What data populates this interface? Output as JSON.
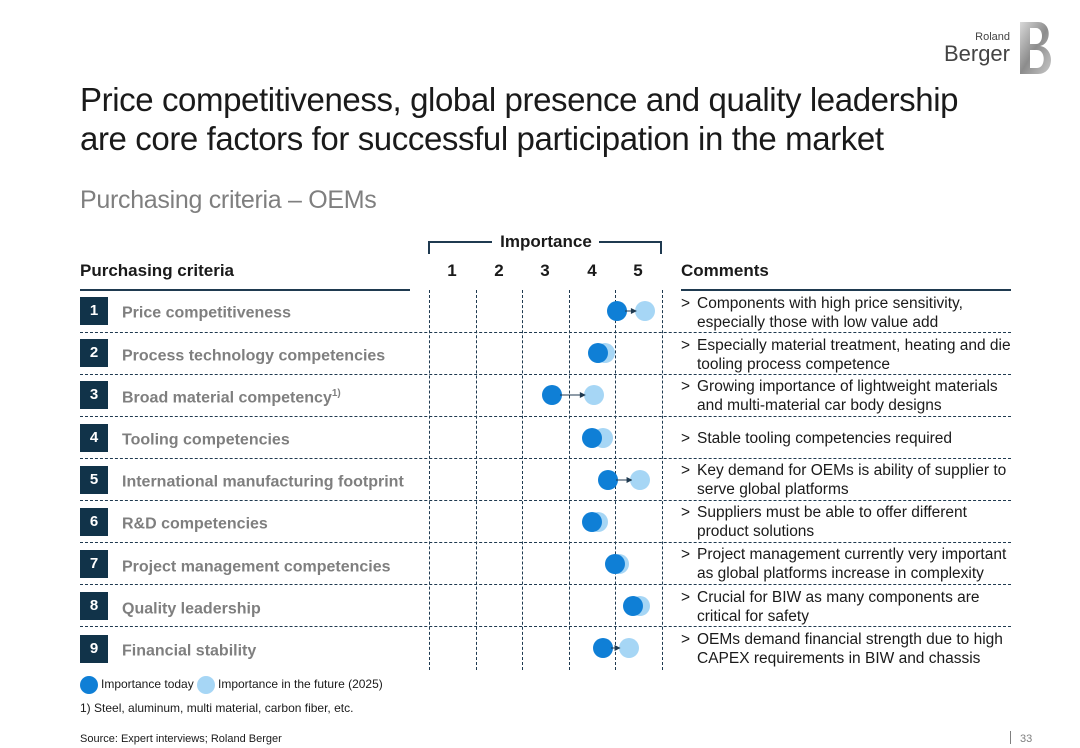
{
  "brand": {
    "line1": "Roland",
    "line2": "Berger",
    "accent": "#113349"
  },
  "title": "Price competitiveness, global presence and quality leadership are core factors for successful participation in the market",
  "subtitle": "Purchasing criteria – OEMs",
  "table": {
    "criteria_header": "Purchasing criteria",
    "importance_header": "Importance",
    "comments_header": "Comments",
    "scale": [
      "1",
      "2",
      "3",
      "4",
      "5"
    ],
    "rows": [
      {
        "num": "1",
        "label": "Price competitiveness",
        "sup": "",
        "today": 4.55,
        "future": 5.15,
        "comment": "Components with high price sensitivity, especially those with low value add"
      },
      {
        "num": "2",
        "label": "Process technology competencies",
        "sup": "",
        "today": 4.15,
        "future": 4.3,
        "comment": "Especially material treatment, heating and die tooling process competence"
      },
      {
        "num": "3",
        "label": "Broad material competency",
        "sup": "1)",
        "today": 3.15,
        "future": 4.05,
        "comment": "Growing importance of lightweight materials and multi-material car body designs"
      },
      {
        "num": "4",
        "label": "Tooling competencies",
        "sup": "",
        "today": 4.0,
        "future": 4.25,
        "comment": "Stable tooling competencies required"
      },
      {
        "num": "5",
        "label": "International manufacturing footprint",
        "sup": "",
        "today": 4.35,
        "future": 5.05,
        "comment": "Key demand for OEMs is ability of supplier to serve global platforms"
      },
      {
        "num": "6",
        "label": "R&D competencies",
        "sup": "",
        "today": 4.0,
        "future": 4.15,
        "comment": "Suppliers must be able to offer different product solutions"
      },
      {
        "num": "7",
        "label": "Project management competencies",
        "sup": "",
        "today": 4.5,
        "future": 4.6,
        "comment": "Project management currently very important as global platforms increase in complexity"
      },
      {
        "num": "8",
        "label": "Quality leadership",
        "sup": "",
        "today": 4.9,
        "future": 5.05,
        "comment": "Crucial for BIW as many components are critical for safety"
      },
      {
        "num": "9",
        "label": "Financial stability",
        "sup": "",
        "today": 4.25,
        "future": 4.8,
        "comment": "OEMs demand financial strength due to high CAPEX requirements in BIW and chassis"
      }
    ]
  },
  "legend": {
    "today": "Importance today",
    "future": "Importance in the future (2025)"
  },
  "colors": {
    "today": "#0f7fd6",
    "future": "#a6d6f5",
    "row_box": "#113349",
    "rule": "#1f3a50"
  },
  "footnote": "1) Steel, aluminum, multi material, carbon fiber, etc.",
  "source": "Source: Expert interviews; Roland Berger",
  "page_number": "33",
  "comment_bullet": ">"
}
